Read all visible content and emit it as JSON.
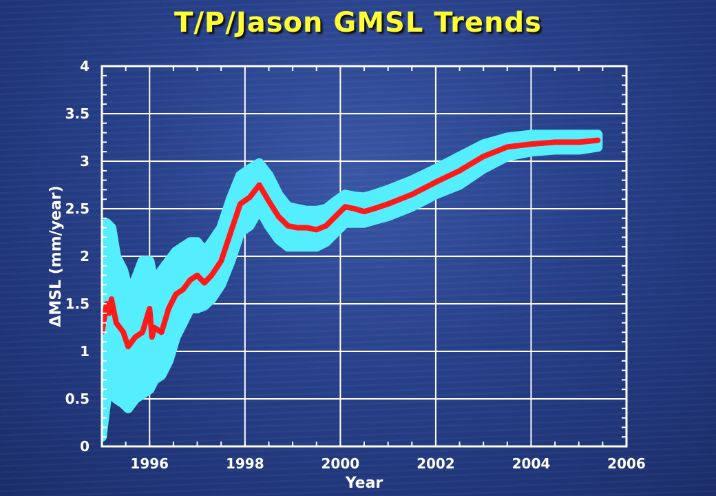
{
  "chart_data": {
    "type": "line",
    "title": "T/P/Jason GMSL Trends",
    "xlabel": "Year",
    "ylabel": "ΔMSL (mm/year)",
    "xlim": [
      1995.0,
      2006.0
    ],
    "ylim": [
      0,
      4
    ],
    "xticks": [
      1996,
      1998,
      2000,
      2002,
      2004,
      2006
    ],
    "yticks": [
      0,
      0.5,
      1,
      1.5,
      2,
      2.5,
      3,
      3.5,
      4
    ],
    "ytick_labels": [
      "0",
      "0.5",
      "1",
      "1.5",
      "2",
      "2.5",
      "3",
      "3.5",
      "4"
    ],
    "grid": true,
    "colors": {
      "trend": "#ff1a1a",
      "uncertainty": "#55eeff",
      "frame": "#ffffff",
      "title": "#ffff33"
    },
    "series": [
      {
        "role": "trend",
        "x": [
          1995.0,
          1995.1,
          1995.15,
          1995.2,
          1995.3,
          1995.45,
          1995.55,
          1995.7,
          1995.85,
          1996.0,
          1996.05,
          1996.1,
          1996.25,
          1996.4,
          1996.55,
          1996.7,
          1996.85,
          1997.0,
          1997.15,
          1997.3,
          1997.5,
          1997.7,
          1997.9,
          1998.1,
          1998.3,
          1998.5,
          1998.7,
          1998.9,
          1999.1,
          1999.3,
          1999.5,
          1999.7,
          1999.9,
          2000.1,
          2000.3,
          2000.5,
          2000.7,
          2001.0,
          2001.5,
          2002.0,
          2002.5,
          2003.0,
          2003.5,
          2004.0,
          2004.5,
          2005.0,
          2005.4
        ],
        "y": [
          1.2,
          1.5,
          1.4,
          1.55,
          1.3,
          1.2,
          1.05,
          1.15,
          1.2,
          1.45,
          1.15,
          1.25,
          1.2,
          1.45,
          1.6,
          1.65,
          1.75,
          1.8,
          1.72,
          1.8,
          1.95,
          2.25,
          2.55,
          2.62,
          2.75,
          2.58,
          2.42,
          2.32,
          2.3,
          2.3,
          2.28,
          2.32,
          2.42,
          2.52,
          2.5,
          2.47,
          2.5,
          2.55,
          2.65,
          2.78,
          2.9,
          3.05,
          3.15,
          3.18,
          3.2,
          3.2,
          3.22
        ]
      },
      {
        "role": "uncertainty-upper",
        "x": [
          1995.0,
          1995.1,
          1995.2,
          1995.3,
          1995.45,
          1995.55,
          1995.7,
          1995.85,
          1996.0,
          1996.1,
          1996.25,
          1996.4,
          1996.55,
          1996.7,
          1996.85,
          1997.0,
          1997.15,
          1997.3,
          1997.5,
          1997.7,
          1997.9,
          1998.1,
          1998.3,
          1998.5,
          1998.7,
          1998.9,
          1999.1,
          1999.3,
          1999.5,
          1999.7,
          1999.9,
          2000.1,
          2000.3,
          2000.5,
          2000.7,
          2001.0,
          2001.5,
          2002.0,
          2002.5,
          2003.0,
          2003.5,
          2004.0,
          2004.5,
          2005.0,
          2005.4
        ],
        "y": [
          2.3,
          2.35,
          2.3,
          2.0,
          1.85,
          1.65,
          1.75,
          1.95,
          1.95,
          1.7,
          1.85,
          1.95,
          2.05,
          2.1,
          2.15,
          2.15,
          2.05,
          2.15,
          2.3,
          2.6,
          2.85,
          2.92,
          2.98,
          2.85,
          2.65,
          2.52,
          2.5,
          2.48,
          2.48,
          2.5,
          2.58,
          2.65,
          2.63,
          2.62,
          2.65,
          2.7,
          2.8,
          2.92,
          3.05,
          3.18,
          3.25,
          3.28,
          3.28,
          3.28,
          3.28
        ]
      },
      {
        "role": "uncertainty-lower",
        "x": [
          1995.0,
          1995.1,
          1995.2,
          1995.3,
          1995.45,
          1995.55,
          1995.7,
          1995.85,
          1996.0,
          1996.1,
          1996.25,
          1996.4,
          1996.55,
          1996.7,
          1996.85,
          1997.0,
          1997.15,
          1997.3,
          1997.5,
          1997.7,
          1997.9,
          1998.1,
          1998.3,
          1998.5,
          1998.7,
          1998.9,
          1999.1,
          1999.3,
          1999.5,
          1999.7,
          1999.9,
          2000.1,
          2000.3,
          2000.5,
          2000.7,
          2001.0,
          2001.5,
          2002.0,
          2002.5,
          2003.0,
          2003.5,
          2004.0,
          2004.5,
          2005.0,
          2005.4
        ],
        "y": [
          0.1,
          0.5,
          0.55,
          0.5,
          0.45,
          0.4,
          0.5,
          0.55,
          0.6,
          0.7,
          0.75,
          0.9,
          1.15,
          1.3,
          1.45,
          1.45,
          1.48,
          1.55,
          1.7,
          1.95,
          2.25,
          2.32,
          2.5,
          2.32,
          2.18,
          2.1,
          2.1,
          2.1,
          2.1,
          2.15,
          2.25,
          2.35,
          2.35,
          2.35,
          2.38,
          2.42,
          2.52,
          2.65,
          2.75,
          2.92,
          3.05,
          3.1,
          3.12,
          3.12,
          3.15
        ]
      }
    ]
  }
}
